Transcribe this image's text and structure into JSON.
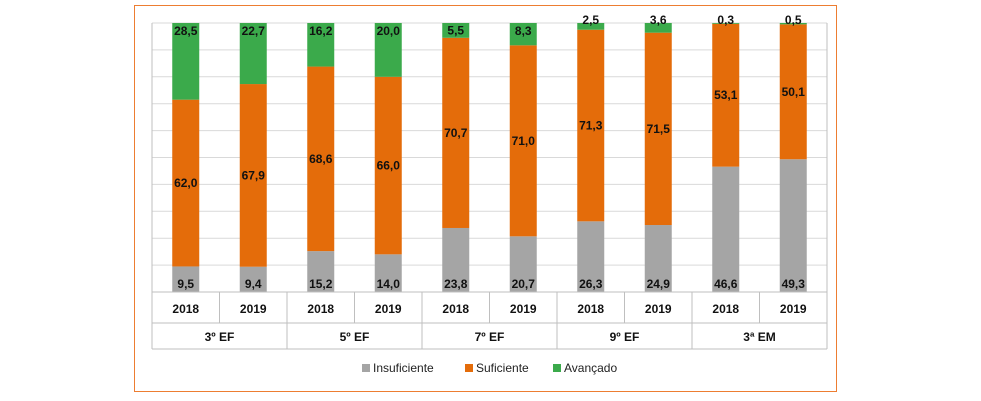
{
  "chart_data": {
    "type": "bar",
    "stacked": true,
    "normalized": true,
    "ylim": [
      0,
      100
    ],
    "grid": true,
    "legend_position": "bottom",
    "groups": [
      {
        "name": "3º  EF",
        "years": [
          "2018",
          "2019"
        ]
      },
      {
        "name": "5º  EF",
        "years": [
          "2018",
          "2019"
        ]
      },
      {
        "name": "7º  EF",
        "years": [
          "2018",
          "2019"
        ]
      },
      {
        "name": "9º  EF",
        "years": [
          "2018",
          "2019"
        ]
      },
      {
        "name": "3ª  EM",
        "years": [
          "2018",
          "2019"
        ]
      }
    ],
    "categories": [
      "2018",
      "2019",
      "2018",
      "2019",
      "2018",
      "2019",
      "2018",
      "2019",
      "2018",
      "2019"
    ],
    "series": [
      {
        "name": "Insuficiente",
        "color": "#A5A5A5",
        "values": [
          9.5,
          9.4,
          15.2,
          14.0,
          23.8,
          20.7,
          26.3,
          24.9,
          46.6,
          49.3
        ],
        "labels": [
          "9,5",
          "9,4",
          "15,2",
          "14,0",
          "23,8",
          "20,7",
          "26,3",
          "24,9",
          "46,6",
          "49,3"
        ]
      },
      {
        "name": "Suficiente",
        "color": "#E46C0A",
        "values": [
          62.0,
          67.9,
          68.6,
          66.0,
          70.7,
          71.0,
          71.3,
          71.5,
          53.1,
          50.1
        ],
        "labels": [
          "62,0",
          "67,9",
          "68,6",
          "66,0",
          "70,7",
          "71,0",
          "71,3",
          "71,5",
          "53,1",
          "50,1"
        ]
      },
      {
        "name": "Avançado",
        "color": "#3BAA4B",
        "values": [
          28.5,
          22.7,
          16.2,
          20.0,
          5.5,
          8.3,
          2.5,
          3.6,
          0.3,
          0.5
        ],
        "labels": [
          "28,5",
          "22,7",
          "16,2",
          "20,0",
          "5,5",
          "8,3",
          "2,5",
          "3,6",
          "0,3",
          "0,5"
        ]
      }
    ]
  }
}
